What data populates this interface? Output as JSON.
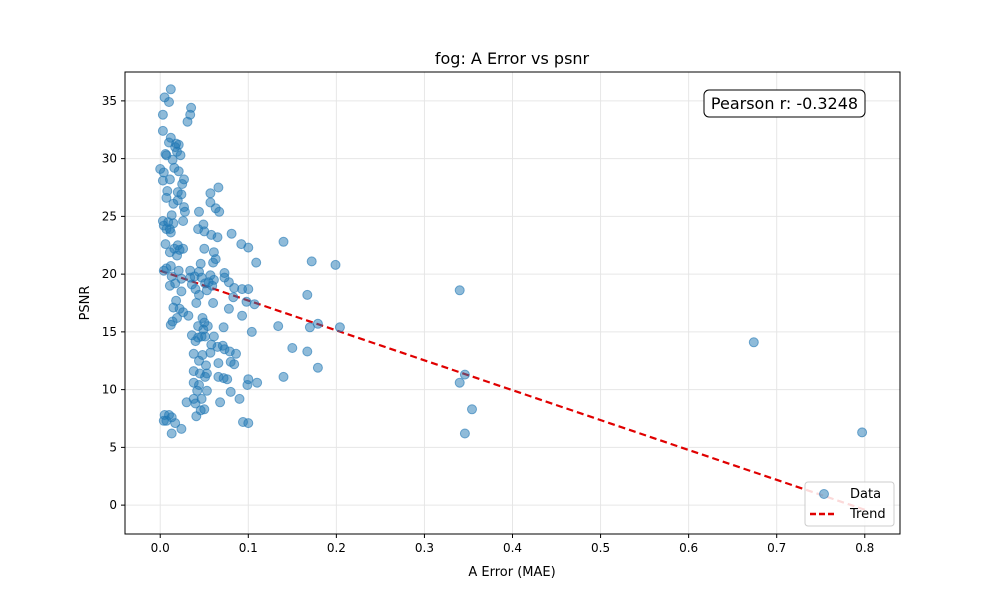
{
  "chart_data": {
    "type": "scatter",
    "title": "fog: A Error vs psnr",
    "xlabel": "A Error (MAE)",
    "ylabel": "PSNR",
    "xlim": [
      -0.04,
      0.84
    ],
    "ylim": [
      -2.5,
      37.5
    ],
    "xticks": [
      0.0,
      0.1,
      0.2,
      0.3,
      0.4,
      0.5,
      0.6,
      0.7,
      0.8
    ],
    "xtick_labels": [
      "0.0",
      "0.1",
      "0.2",
      "0.3",
      "0.4",
      "0.5",
      "0.6",
      "0.7",
      "0.8"
    ],
    "yticks": [
      0,
      5,
      10,
      15,
      20,
      25,
      30,
      35
    ],
    "ytick_labels": [
      "0",
      "5",
      "10",
      "15",
      "20",
      "25",
      "30",
      "35"
    ],
    "grid": true,
    "annotation": "Pearson r: -0.3248",
    "legend": {
      "position": "lower-right",
      "entries": [
        "Data",
        "Trend"
      ]
    },
    "colors": {
      "points": "#1f77b4",
      "trend": "#e00000"
    },
    "trend": {
      "x": [
        0.0,
        0.8
      ],
      "y": [
        20.3,
        -0.4
      ]
    },
    "points": [
      [
        0.012,
        36.0
      ],
      [
        0.005,
        35.3
      ],
      [
        0.01,
        34.9
      ],
      [
        0.035,
        34.4
      ],
      [
        0.003,
        33.8
      ],
      [
        0.034,
        33.8
      ],
      [
        0.031,
        33.2
      ],
      [
        0.003,
        32.4
      ],
      [
        0.012,
        31.8
      ],
      [
        0.01,
        31.4
      ],
      [
        0.018,
        31.3
      ],
      [
        0.021,
        31.2
      ],
      [
        0.017,
        31.0
      ],
      [
        0.006,
        30.4
      ],
      [
        0.007,
        30.3
      ],
      [
        0.019,
        30.6
      ],
      [
        0.023,
        30.3
      ],
      [
        0.014,
        29.9
      ],
      [
        0.0,
        29.1
      ],
      [
        0.004,
        28.8
      ],
      [
        0.016,
        29.2
      ],
      [
        0.021,
        28.9
      ],
      [
        0.003,
        28.1
      ],
      [
        0.011,
        28.2
      ],
      [
        0.025,
        27.8
      ],
      [
        0.027,
        28.2
      ],
      [
        0.066,
        27.5
      ],
      [
        0.057,
        27.0
      ],
      [
        0.008,
        27.2
      ],
      [
        0.02,
        27.1
      ],
      [
        0.007,
        26.6
      ],
      [
        0.024,
        26.9
      ],
      [
        0.015,
        26.1
      ],
      [
        0.027,
        25.8
      ],
      [
        0.02,
        26.4
      ],
      [
        0.057,
        26.2
      ],
      [
        0.063,
        25.7
      ],
      [
        0.067,
        25.4
      ],
      [
        0.044,
        25.4
      ],
      [
        0.028,
        25.4
      ],
      [
        0.013,
        25.1
      ],
      [
        0.003,
        24.6
      ],
      [
        0.009,
        24.5
      ],
      [
        0.015,
        24.4
      ],
      [
        0.026,
        24.6
      ],
      [
        0.049,
        24.3
      ],
      [
        0.004,
        24.2
      ],
      [
        0.007,
        23.9
      ],
      [
        0.011,
        23.9
      ],
      [
        0.043,
        23.9
      ],
      [
        0.012,
        23.6
      ],
      [
        0.05,
        23.7
      ],
      [
        0.058,
        23.4
      ],
      [
        0.065,
        23.2
      ],
      [
        0.081,
        23.5
      ],
      [
        0.14,
        22.8
      ],
      [
        0.006,
        22.6
      ],
      [
        0.02,
        22.5
      ],
      [
        0.016,
        22.2
      ],
      [
        0.05,
        22.2
      ],
      [
        0.092,
        22.6
      ],
      [
        0.1,
        22.3
      ],
      [
        0.011,
        21.9
      ],
      [
        0.022,
        22.1
      ],
      [
        0.026,
        22.2
      ],
      [
        0.019,
        21.6
      ],
      [
        0.061,
        21.9
      ],
      [
        0.063,
        21.3
      ],
      [
        0.06,
        21.0
      ],
      [
        0.109,
        21.0
      ],
      [
        0.172,
        21.1
      ],
      [
        0.199,
        20.8
      ],
      [
        0.007,
        20.5
      ],
      [
        0.012,
        20.7
      ],
      [
        0.021,
        20.3
      ],
      [
        0.034,
        20.3
      ],
      [
        0.046,
        20.9
      ],
      [
        0.044,
        20.2
      ],
      [
        0.057,
        19.9
      ],
      [
        0.073,
        20.1
      ],
      [
        0.004,
        20.3
      ],
      [
        0.013,
        19.8
      ],
      [
        0.024,
        19.6
      ],
      [
        0.039,
        19.8
      ],
      [
        0.047,
        19.7
      ],
      [
        0.061,
        19.5
      ],
      [
        0.073,
        19.7
      ],
      [
        0.034,
        19.7
      ],
      [
        0.055,
        19.3
      ],
      [
        0.078,
        19.3
      ],
      [
        0.051,
        19.2
      ],
      [
        0.011,
        19.0
      ],
      [
        0.017,
        19.2
      ],
      [
        0.036,
        19.1
      ],
      [
        0.059,
        19.0
      ],
      [
        0.084,
        18.8
      ],
      [
        0.093,
        18.7
      ],
      [
        0.1,
        18.7
      ],
      [
        0.024,
        18.5
      ],
      [
        0.04,
        18.7
      ],
      [
        0.044,
        18.2
      ],
      [
        0.053,
        18.6
      ],
      [
        0.083,
        18.0
      ],
      [
        0.018,
        17.7
      ],
      [
        0.041,
        17.5
      ],
      [
        0.06,
        17.5
      ],
      [
        0.098,
        17.6
      ],
      [
        0.107,
        17.4
      ],
      [
        0.167,
        18.2
      ],
      [
        0.34,
        18.6
      ],
      [
        0.015,
        17.1
      ],
      [
        0.022,
        17.0
      ],
      [
        0.026,
        16.7
      ],
      [
        0.032,
        16.4
      ],
      [
        0.048,
        16.2
      ],
      [
        0.078,
        17.0
      ],
      [
        0.093,
        16.4
      ],
      [
        0.014,
        15.9
      ],
      [
        0.019,
        16.2
      ],
      [
        0.012,
        15.6
      ],
      [
        0.043,
        15.5
      ],
      [
        0.05,
        15.8
      ],
      [
        0.054,
        15.5
      ],
      [
        0.072,
        15.4
      ],
      [
        0.049,
        15.2
      ],
      [
        0.104,
        15.0
      ],
      [
        0.134,
        15.5
      ],
      [
        0.17,
        15.4
      ],
      [
        0.179,
        15.7
      ],
      [
        0.204,
        15.4
      ],
      [
        0.036,
        14.7
      ],
      [
        0.043,
        14.5
      ],
      [
        0.047,
        14.6
      ],
      [
        0.061,
        14.6
      ],
      [
        0.04,
        14.2
      ],
      [
        0.051,
        14.6
      ],
      [
        0.058,
        13.9
      ],
      [
        0.065,
        13.7
      ],
      [
        0.071,
        13.8
      ],
      [
        0.079,
        13.3
      ],
      [
        0.086,
        13.1
      ],
      [
        0.038,
        13.1
      ],
      [
        0.048,
        13.0
      ],
      [
        0.057,
        13.2
      ],
      [
        0.073,
        13.5
      ],
      [
        0.15,
        13.6
      ],
      [
        0.167,
        13.3
      ],
      [
        0.044,
        12.5
      ],
      [
        0.052,
        12.1
      ],
      [
        0.066,
        12.3
      ],
      [
        0.08,
        12.4
      ],
      [
        0.084,
        12.2
      ],
      [
        0.179,
        11.9
      ],
      [
        0.038,
        11.6
      ],
      [
        0.045,
        11.4
      ],
      [
        0.053,
        11.4
      ],
      [
        0.051,
        11.1
      ],
      [
        0.066,
        11.1
      ],
      [
        0.072,
        11.0
      ],
      [
        0.076,
        10.9
      ],
      [
        0.1,
        10.9
      ],
      [
        0.11,
        10.6
      ],
      [
        0.14,
        11.1
      ],
      [
        0.346,
        11.3
      ],
      [
        0.038,
        10.6
      ],
      [
        0.044,
        10.4
      ],
      [
        0.099,
        10.4
      ],
      [
        0.34,
        10.6
      ],
      [
        0.042,
        9.9
      ],
      [
        0.053,
        9.9
      ],
      [
        0.08,
        9.8
      ],
      [
        0.674,
        14.1
      ],
      [
        0.03,
        8.9
      ],
      [
        0.038,
        9.2
      ],
      [
        0.047,
        9.2
      ],
      [
        0.068,
        8.9
      ],
      [
        0.09,
        9.2
      ],
      [
        0.04,
        8.8
      ],
      [
        0.046,
        8.2
      ],
      [
        0.05,
        8.3
      ],
      [
        0.354,
        8.3
      ],
      [
        0.005,
        7.8
      ],
      [
        0.01,
        7.8
      ],
      [
        0.013,
        7.6
      ],
      [
        0.041,
        7.7
      ],
      [
        0.004,
        7.3
      ],
      [
        0.007,
        7.3
      ],
      [
        0.017,
        7.1
      ],
      [
        0.094,
        7.2
      ],
      [
        0.1,
        7.1
      ],
      [
        0.024,
        6.6
      ],
      [
        0.013,
        6.2
      ],
      [
        0.346,
        6.2
      ],
      [
        0.797,
        6.3
      ]
    ]
  }
}
